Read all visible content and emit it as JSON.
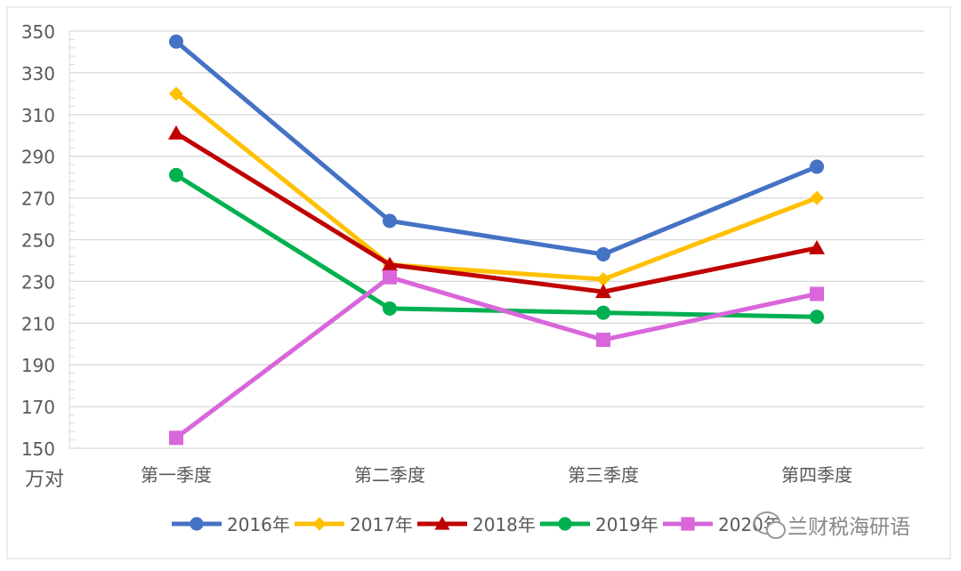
{
  "chart_data": {
    "type": "line",
    "title": "",
    "xlabel": "",
    "ylabel": "万对",
    "ylim": [
      150,
      350
    ],
    "yticks": [
      150,
      170,
      190,
      210,
      230,
      250,
      270,
      290,
      310,
      330,
      350
    ],
    "grid": true,
    "legend_position": "bottom",
    "categories": [
      "第一季度",
      "第二季度",
      "第三季度",
      "第四季度"
    ],
    "series": [
      {
        "name": "2016年",
        "color": "#4472C4",
        "marker": "circle",
        "values": [
          345,
          259,
          243,
          285
        ]
      },
      {
        "name": "2017年",
        "color": "#FFC000",
        "marker": "diamond",
        "values": [
          320,
          238,
          231,
          270
        ]
      },
      {
        "name": "2018年",
        "color": "#C00000",
        "marker": "triangle",
        "values": [
          301,
          238,
          225,
          246
        ]
      },
      {
        "name": "2019年",
        "color": "#00B050",
        "marker": "circle",
        "values": [
          281,
          217,
          215,
          213
        ]
      },
      {
        "name": "2020年",
        "color": "#D966DB",
        "marker": "square",
        "values": [
          155,
          232,
          202,
          224
        ]
      }
    ]
  },
  "watermark": "兰财税海研语"
}
